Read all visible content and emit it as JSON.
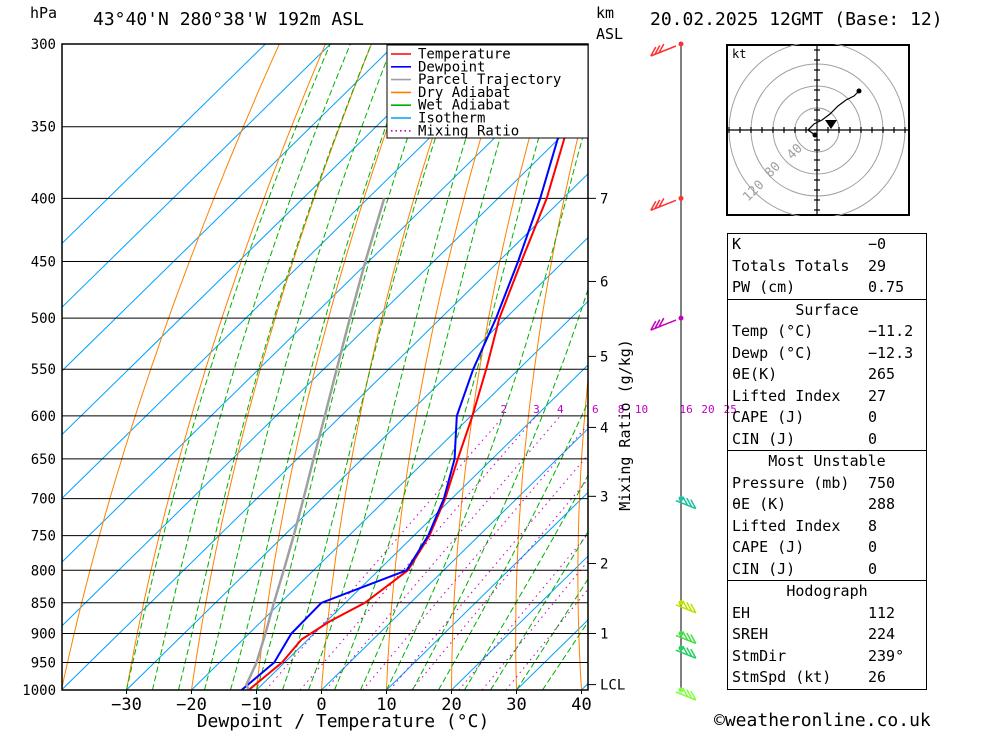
{
  "header": {
    "pressure_unit": "hPa",
    "location": "43°40'N  280°38'W  192m  ASL",
    "height_unit_line1": "km",
    "height_unit_line2": "ASL",
    "datetime": "20.02.2025  12GMT  (Base: 12)"
  },
  "chart_data": {
    "type": "line",
    "title": "43°40'N  280°38'W  192m  ASL",
    "xlabel": "Dewpoint / Temperature (°C)",
    "ylabel": "hPa",
    "right_axis_label": "Mixing Ratio (g/kg)",
    "x_ticks": [
      -30,
      -20,
      -10,
      0,
      10,
      20,
      30,
      40
    ],
    "x_tick_labels": [
      "−30",
      "−20",
      "−10",
      "0",
      "10",
      "20",
      "30",
      "40"
    ],
    "y_ticks": [
      300,
      350,
      400,
      450,
      500,
      550,
      600,
      650,
      700,
      750,
      800,
      850,
      900,
      950,
      1000
    ],
    "ylim": [
      1000,
      300
    ],
    "xlim_at_base": [
      -40,
      40
    ],
    "skew": true,
    "height_ticks_km": [
      {
        "label": "7",
        "p": 400
      },
      {
        "label": "6",
        "p": 467
      },
      {
        "label": "5",
        "p": 537
      },
      {
        "label": "4",
        "p": 613
      },
      {
        "label": "3",
        "p": 697
      },
      {
        "label": "2",
        "p": 790
      },
      {
        "label": "1",
        "p": 900
      },
      {
        "label": "LCL",
        "p": 990
      }
    ],
    "mixing_ratio_labels": [
      "2",
      "3",
      "4",
      "6",
      "8",
      "10",
      "16",
      "20",
      "25"
    ],
    "mixing_ratio_values": [
      2,
      3,
      4,
      6,
      8,
      10,
      16,
      20,
      25
    ],
    "legend": {
      "position": "top-right",
      "entries": [
        {
          "name": "Temperature",
          "color": "#ff0000",
          "style": "solid"
        },
        {
          "name": "Dewpoint",
          "color": "#0000ff",
          "style": "solid"
        },
        {
          "name": "Parcel Trajectory",
          "color": "#a0a0a0",
          "style": "solid"
        },
        {
          "name": "Dry Adiabat",
          "color": "#ff8000",
          "style": "solid"
        },
        {
          "name": "Wet Adiabat",
          "color": "#00b000",
          "style": "solid"
        },
        {
          "name": "Isotherm",
          "color": "#00a0ff",
          "style": "solid"
        },
        {
          "name": "Mixing Ratio",
          "color": "#c000c0",
          "style": "dotted"
        }
      ]
    },
    "series": [
      {
        "name": "Temperature",
        "color": "#ff0000",
        "points": [
          {
            "p": 1000,
            "t": -11.2
          },
          {
            "p": 950,
            "t": -10.4
          },
          {
            "p": 910,
            "t": -11.0
          },
          {
            "p": 880,
            "t": -9.5
          },
          {
            "p": 850,
            "t": -7.0
          },
          {
            "p": 800,
            "t": -5.5
          },
          {
            "p": 750,
            "t": -7.6
          },
          {
            "p": 700,
            "t": -11.0
          },
          {
            "p": 650,
            "t": -15.3
          },
          {
            "p": 600,
            "t": -19.8
          },
          {
            "p": 550,
            "t": -25.0
          },
          {
            "p": 500,
            "t": -31.0
          },
          {
            "p": 450,
            "t": -36.5
          },
          {
            "p": 400,
            "t": -42.5
          },
          {
            "p": 350,
            "t": -50.5
          },
          {
            "p": 300,
            "t": -60.0
          }
        ]
      },
      {
        "name": "Dewpoint",
        "color": "#0000ff",
        "points": [
          {
            "p": 1000,
            "t": -12.3
          },
          {
            "p": 950,
            "t": -11.6
          },
          {
            "p": 900,
            "t": -13.5
          },
          {
            "p": 850,
            "t": -13.7
          },
          {
            "p": 800,
            "t": -5.7
          },
          {
            "p": 750,
            "t": -7.8
          },
          {
            "p": 700,
            "t": -11.2
          },
          {
            "p": 650,
            "t": -15.8
          },
          {
            "p": 600,
            "t": -22.2
          },
          {
            "p": 550,
            "t": -27.0
          },
          {
            "p": 500,
            "t": -31.5
          },
          {
            "p": 450,
            "t": -37.0
          },
          {
            "p": 400,
            "t": -43.5
          },
          {
            "p": 350,
            "t": -51.5
          },
          {
            "p": 300,
            "t": -62.0
          }
        ]
      },
      {
        "name": "Parcel Trajectory",
        "color": "#a0a0a0",
        "points": [
          {
            "p": 1000,
            "t": -11.2
          },
          {
            "p": 990,
            "t": -12.4
          },
          {
            "p": 950,
            "t": -14.3
          },
          {
            "p": 900,
            "t": -17.5
          },
          {
            "p": 850,
            "t": -21.0
          },
          {
            "p": 800,
            "t": -24.6
          },
          {
            "p": 750,
            "t": -28.5
          },
          {
            "p": 700,
            "t": -32.8
          },
          {
            "p": 650,
            "t": -37.5
          },
          {
            "p": 600,
            "t": -42.5
          },
          {
            "p": 550,
            "t": -48.0
          },
          {
            "p": 500,
            "t": -54.0
          },
          {
            "p": 450,
            "t": -60.5
          },
          {
            "p": 400,
            "t": -67.5
          }
        ]
      }
    ],
    "wind_profile": [
      {
        "p": 300,
        "color": "#ff3030"
      },
      {
        "p": 400,
        "color": "#ff3030"
      },
      {
        "p": 500,
        "color": "#c000c0"
      },
      {
        "p": 700,
        "color": "#20c0a0"
      },
      {
        "p": 850,
        "color": "#c0e000"
      },
      {
        "p": 900,
        "color": "#40e040"
      },
      {
        "p": 925,
        "color": "#20d060"
      },
      {
        "p": 1000,
        "color": "#80ff40"
      }
    ]
  },
  "hodograph": {
    "unit_label": "kt",
    "ring_labels": [
      "40",
      "80",
      "120"
    ]
  },
  "indices": {
    "k_label": "K",
    "k_value": "−0",
    "tt_label": "Totals Totals",
    "tt_value": "29",
    "pw_label": "PW (cm)",
    "pw_value": "0.75"
  },
  "surface": {
    "title": "Surface",
    "temp_label": "Temp (°C)",
    "temp_value": "−11.2",
    "dewp_label": "Dewp (°C)",
    "dewp_value": "−12.3",
    "theta_label": "θE(K)",
    "theta_value": "265",
    "li_label": "Lifted Index",
    "li_value": "27",
    "cape_label": "CAPE (J)",
    "cape_value": "0",
    "cin_label": "CIN (J)",
    "cin_value": "0"
  },
  "most_unstable": {
    "title": "Most Unstable",
    "pressure_label": "Pressure (mb)",
    "pressure_value": "750",
    "theta_label": "θE (K)",
    "theta_value": "288",
    "li_label": "Lifted Index",
    "li_value": "8",
    "cape_label": "CAPE (J)",
    "cape_value": "0",
    "cin_label": "CIN (J)",
    "cin_value": "0"
  },
  "hodograph_params": {
    "title": "Hodograph",
    "eh_label": "EH",
    "eh_value": "112",
    "sreh_label": "SREH",
    "sreh_value": "224",
    "stmdir_label": "StmDir",
    "stmdir_value": "239°",
    "stmspd_label": "StmSpd (kt)",
    "stmspd_value": "26"
  },
  "footer": {
    "copyright_symbol": "©",
    "site": "weatheronline.co.uk"
  }
}
